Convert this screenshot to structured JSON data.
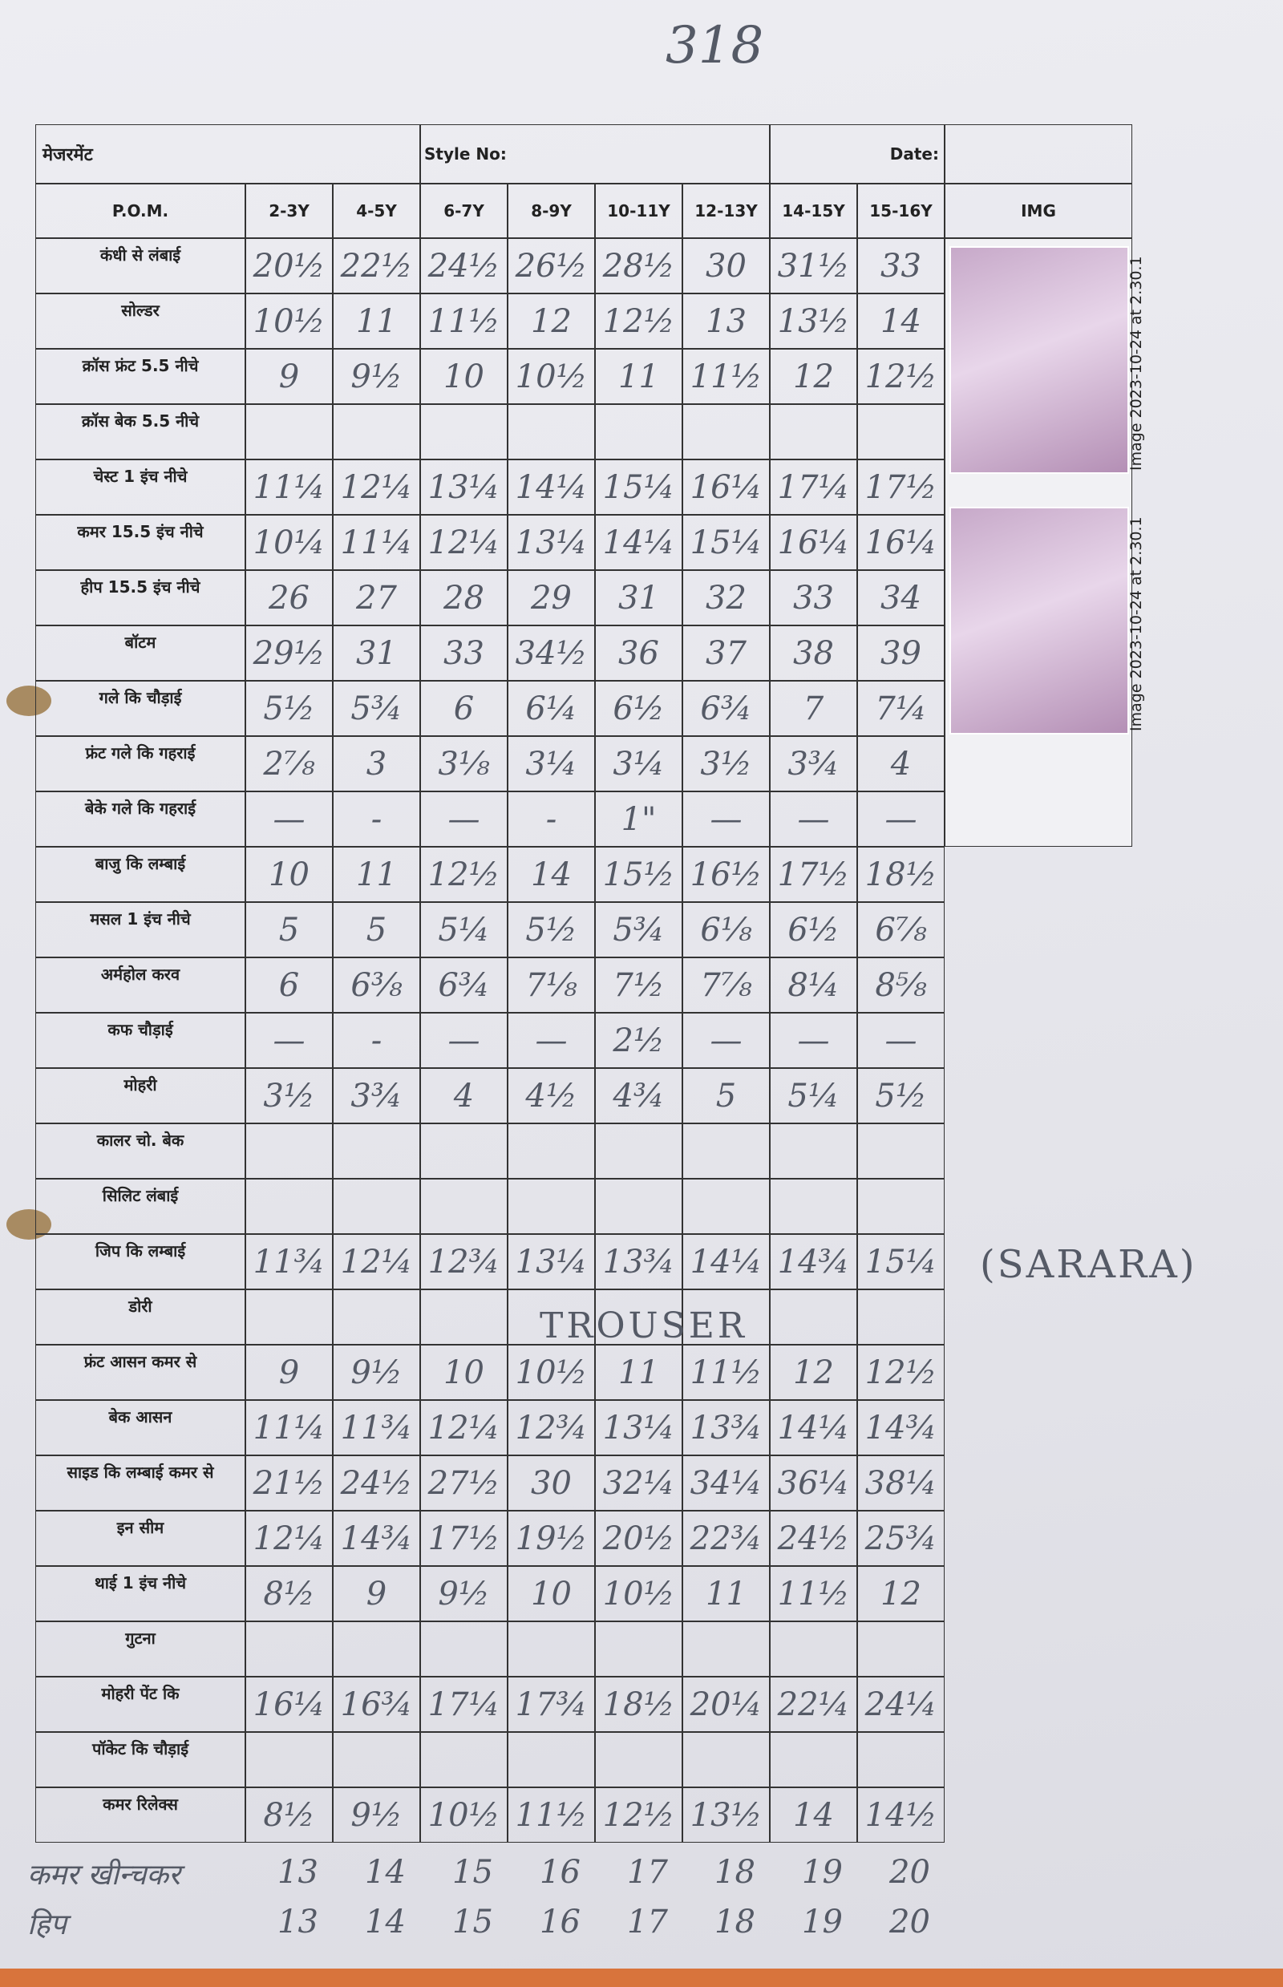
{
  "page_number": "318",
  "header": {
    "title": "मेजरमेंट",
    "style_no": "Style No:",
    "date": "Date:"
  },
  "table": {
    "columns": [
      "P.O.M.",
      "2-3Y",
      "4-5Y",
      "6-7Y",
      "8-9Y",
      "10-11Y",
      "12-13Y",
      "14-15Y",
      "15-16Y",
      "IMG"
    ],
    "rows": [
      {
        "label": "कंधी से लंबाई",
        "values": [
          "20½",
          "22½",
          "24½",
          "26½",
          "28½",
          "30",
          "31½",
          "33"
        ]
      },
      {
        "label": "सोल्डर",
        "values": [
          "10½",
          "11",
          "11½",
          "12",
          "12½",
          "13",
          "13½",
          "14"
        ]
      },
      {
        "label": "क्रॉस फ्रंट 5.5 नीचे",
        "values": [
          "9",
          "9½",
          "10",
          "10½",
          "11",
          "11½",
          "12",
          "12½"
        ]
      },
      {
        "label": "क्रॉस बेक 5.5 नीचे"
      },
      {
        "label": "चेस्ट 1 इंच नीचे",
        "values": [
          "11¼",
          "12¼",
          "13¼",
          "14¼",
          "15¼",
          "16¼",
          "17¼",
          "17½"
        ]
      },
      {
        "label": "कमर 15.5 इंच नीचे",
        "values": [
          "10¼",
          "11¼",
          "12¼",
          "13¼",
          "14¼",
          "15¼",
          "16¼",
          "16¼"
        ]
      },
      {
        "label": "हीप 15.5 इंच नीचे",
        "values": [
          "26",
          "27",
          "28",
          "29",
          "31",
          "32",
          "33",
          "34"
        ]
      },
      {
        "label": "बॉटम",
        "values": [
          "29½",
          "31",
          "33",
          "34½",
          "36",
          "37",
          "38",
          "39"
        ]
      },
      {
        "label": "गले कि चौड़ाई",
        "values": [
          "5½",
          "5¾",
          "6",
          "6¼",
          "6½",
          "6¾",
          "7",
          "7¼"
        ]
      },
      {
        "label": "फ्रंट गले कि गहराई",
        "values": [
          "2⅞",
          "3",
          "3⅛",
          "3¼",
          "3¼",
          "3½",
          "3¾",
          "4"
        ]
      },
      {
        "label": "बेके गले कि गहराई",
        "values": [
          "—",
          "-",
          "—",
          "-",
          "1\"",
          "—",
          "—",
          "—"
        ]
      },
      {
        "label": "बाजु कि लम्बाई",
        "values": [
          "10",
          "11",
          "12½",
          "14",
          "15½",
          "16½",
          "17½",
          "18½"
        ]
      },
      {
        "label": "मसल 1 इंच नीचे",
        "values": [
          "5",
          "5",
          "5¼",
          "5½",
          "5¾",
          "6⅛",
          "6½",
          "6⅞"
        ]
      },
      {
        "label": "अर्महोल करव",
        "values": [
          "6",
          "6⅜",
          "6¾",
          "7⅛",
          "7½",
          "7⅞",
          "8¼",
          "8⅝"
        ]
      },
      {
        "label": "कफ चौड़ाई",
        "values": [
          "—",
          "-",
          "—",
          "—",
          "2½",
          "—",
          "—",
          "—"
        ]
      },
      {
        "label": "मोहरी",
        "values": [
          "3½",
          "3¾",
          "4",
          "4½",
          "4¾",
          "5",
          "5¼",
          "5½"
        ]
      },
      {
        "label": "कालर चो. बेक"
      },
      {
        "label": "सिलिट लंबाई"
      },
      {
        "label": "जिप कि लम्बाई",
        "values": [
          "11¾",
          "12¼",
          "12¾",
          "13¼",
          "13¾",
          "14¼",
          "14¾",
          "15¼"
        ]
      },
      {
        "label": "डोरी"
      },
      {
        "label": "फ्रंट आसन कमर से",
        "values": [
          "9",
          "9½",
          "10",
          "10½",
          "11",
          "11½",
          "12",
          "12½"
        ]
      },
      {
        "label": "बेक आसन",
        "values": [
          "11¼",
          "11¾",
          "12¼",
          "12¾",
          "13¼",
          "13¾",
          "14¼",
          "14¾"
        ]
      },
      {
        "label": "साइड कि लम्बाई कमर से",
        "values": [
          "21½",
          "24½",
          "27½",
          "30",
          "32¼",
          "34¼",
          "36¼",
          "38¼"
        ]
      },
      {
        "label": "इन सीम",
        "values": [
          "12¼",
          "14¾",
          "17½",
          "19½",
          "20½",
          "22¾",
          "24½",
          "25¾"
        ]
      },
      {
        "label": "थाई 1 इंच नीचे",
        "values": [
          "8½",
          "9",
          "9½",
          "10",
          "10½",
          "11",
          "11½",
          "12"
        ]
      },
      {
        "label": "गुटना"
      },
      {
        "label": "मोहरी पेंट कि",
        "values": [
          "16¼",
          "16¾",
          "17¼",
          "17¾",
          "18½",
          "20¼",
          "22¼",
          "24¼"
        ]
      },
      {
        "label": "पॉकेट कि चौड़ाई"
      },
      {
        "label": "कमर रिलेक्स",
        "values": [
          "8½",
          "9½",
          "10½",
          "11½",
          "12½",
          "13½",
          "14",
          "14½"
        ]
      }
    ]
  },
  "annotations": {
    "trouser": "TROUSER",
    "sarara": "(SARARA)"
  },
  "extra_rows": [
    {
      "label": "कमर खीन्चकर",
      "values": [
        "13",
        "14",
        "15",
        "16",
        "17",
        "18",
        "19",
        "20"
      ]
    },
    {
      "label": "हिप",
      "values": [
        "13",
        "14",
        "15",
        "16",
        "17",
        "18",
        "19",
        "20"
      ]
    }
  ],
  "images": [
    {
      "caption": "Image 2023-10-24 at 2.30.1"
    },
    {
      "caption": "Image 2023-10-24 at 2.30.1"
    }
  ]
}
